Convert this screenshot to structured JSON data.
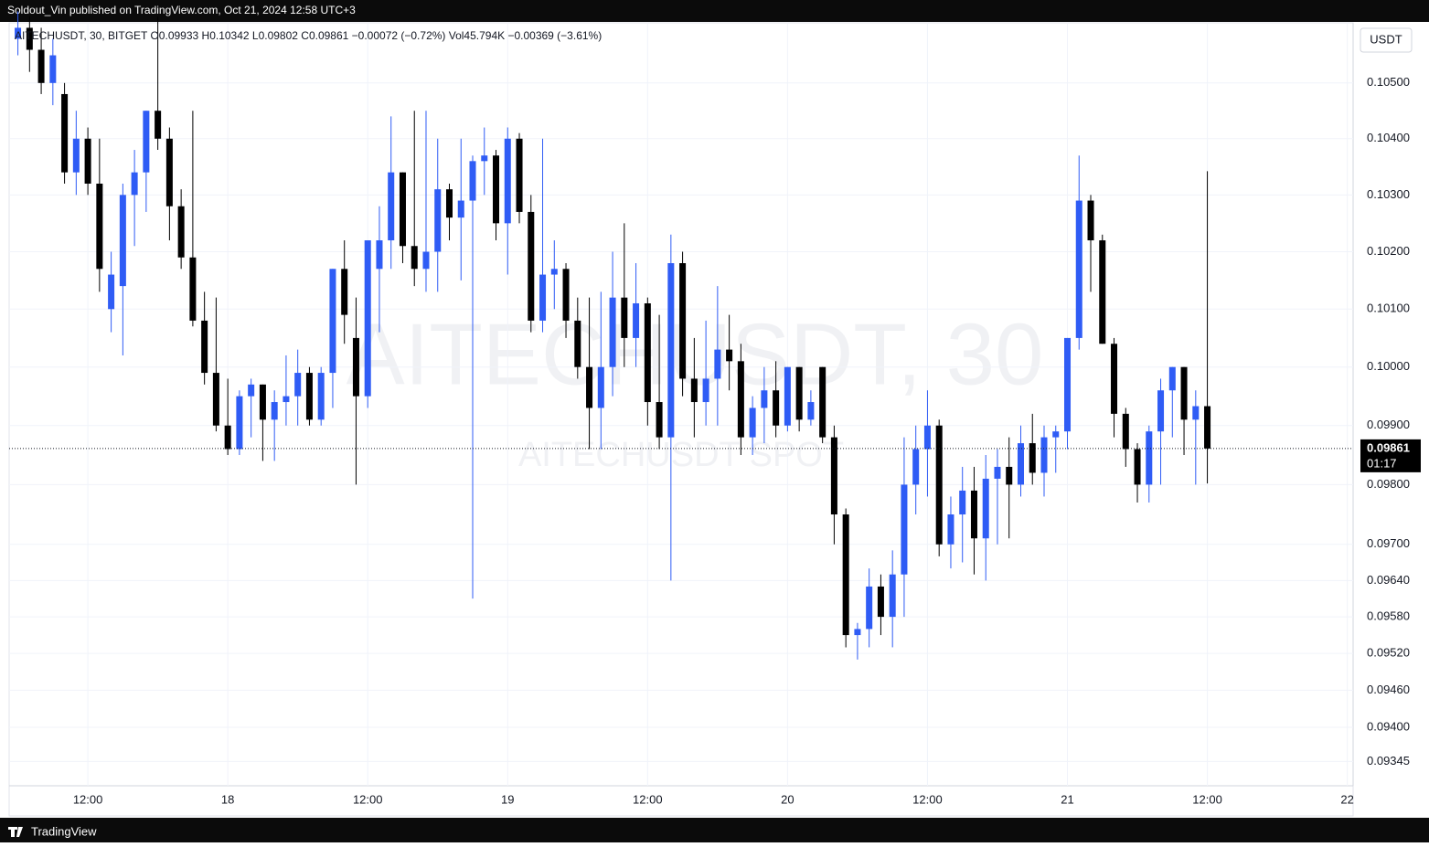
{
  "header": {
    "publisher": "Soldout_Vin published on TradingView.com, Oct 21, 2024 12:58 UTC+3"
  },
  "footer": {
    "brand": "TradingView"
  },
  "chart_data": {
    "type": "candlestick",
    "legend_text": "AITECHUSDT, 30, BITGET  O0.09933  H0.10342  L0.09802  C0.09861  −0.00072 (−0.72%)  Vol45.794K  −0.00369 (−3.61%)",
    "watermark": "AITECHUSDT, 30",
    "watermark_sub": "AITECHUSDT SPOT",
    "currency": "USDT",
    "last_price_label": "0.09861",
    "countdown": "01:17",
    "up_color": "#2f5cf5",
    "down_color": "#000000",
    "log_scale": true,
    "grid": true,
    "xlim": [
      5.25,
      120.5
    ],
    "xticks": [
      {
        "value": 12,
        "label": "12:00"
      },
      {
        "value": 24,
        "label": "18"
      },
      {
        "value": 36,
        "label": "12:00"
      },
      {
        "value": 48,
        "label": "19"
      },
      {
        "value": 60,
        "label": "12:00"
      },
      {
        "value": 72,
        "label": "20"
      },
      {
        "value": 84,
        "label": "12:00"
      },
      {
        "value": 96,
        "label": "21"
      },
      {
        "value": 108,
        "label": "12:00"
      },
      {
        "value": 120,
        "label": "22"
      }
    ],
    "ylim": [
      0.09306,
      0.10609
    ],
    "yticks": [
      {
        "value": 0.09345,
        "label": "0.09345"
      },
      {
        "value": 0.094,
        "label": "0.09400"
      },
      {
        "value": 0.0946,
        "label": "0.09460"
      },
      {
        "value": 0.0952,
        "label": "0.09520"
      },
      {
        "value": 0.0958,
        "label": "0.09580"
      },
      {
        "value": 0.0964,
        "label": "0.09640"
      },
      {
        "value": 0.097,
        "label": "0.09700"
      },
      {
        "value": 0.098,
        "label": "0.09800"
      },
      {
        "value": 0.099,
        "label": "0.09900"
      },
      {
        "value": 0.1,
        "label": "0.10000"
      },
      {
        "value": 0.101,
        "label": "0.10100"
      },
      {
        "value": 0.102,
        "label": "0.10200"
      },
      {
        "value": 0.103,
        "label": "0.10300"
      },
      {
        "value": 0.104,
        "label": "0.10400"
      },
      {
        "value": 0.105,
        "label": "0.10500"
      }
    ],
    "x": [
      6,
      7,
      8,
      9,
      10,
      11,
      12,
      13,
      14,
      15,
      16,
      17,
      18,
      19,
      20,
      21,
      22,
      23,
      24,
      25,
      26,
      27,
      28,
      29,
      30,
      31,
      32,
      33,
      34,
      35,
      36,
      37,
      38,
      39,
      40,
      41,
      42,
      43,
      44,
      45,
      46,
      47,
      48,
      49,
      50,
      51,
      52,
      53,
      54,
      55,
      56,
      57,
      58,
      59,
      60,
      61,
      62,
      63,
      64,
      65,
      66,
      67,
      68,
      69,
      70,
      71,
      72,
      73,
      74,
      75,
      76,
      77,
      78,
      79,
      80,
      81,
      82,
      83,
      84,
      85,
      86,
      87,
      88,
      89,
      90,
      91,
      92,
      93,
      94,
      95,
      96,
      97,
      98,
      99,
      100,
      101,
      102,
      103,
      104,
      105,
      106,
      107,
      108
    ],
    "open": [
      0.1058,
      0.106,
      0.1056,
      0.105,
      0.1048,
      0.1034,
      0.104,
      0.1032,
      0.101,
      0.1014,
      0.103,
      0.1034,
      0.1045,
      0.104,
      0.1028,
      0.1019,
      0.1008,
      0.0999,
      0.099,
      0.0986,
      0.0995,
      0.0997,
      0.0991,
      0.0994,
      0.0995,
      0.0999,
      0.0991,
      0.0999,
      0.1017,
      0.1005,
      0.0995,
      0.1017,
      0.1022,
      0.1034,
      0.1021,
      0.1017,
      0.102,
      0.1031,
      0.1026,
      0.1029,
      0.1036,
      0.1037,
      0.1025,
      0.104,
      0.1027,
      0.1008,
      0.1016,
      0.1017,
      0.1008,
      0.1,
      0.0993,
      0.1,
      0.1012,
      0.1005,
      0.1011,
      0.0994,
      0.0988,
      0.1018,
      0.0998,
      0.0994,
      0.0998,
      0.1003,
      0.1001,
      0.0988,
      0.0993,
      0.0996,
      0.099,
      0.1,
      0.0991,
      0.1,
      0.0988,
      0.0975,
      0.0955,
      0.0956,
      0.0963,
      0.0958,
      0.0965,
      0.098,
      0.0986,
      0.099,
      0.097,
      0.0975,
      0.0979,
      0.0971,
      0.0981,
      0.0983,
      0.098,
      0.0987,
      0.0982,
      0.0988,
      0.0989,
      0.1005,
      0.1029,
      0.1022,
      0.1004,
      0.0992,
      0.0986,
      0.098,
      0.0989,
      0.0996,
      0.1,
      0.0991,
      0.09933
    ],
    "high": [
      0.1063,
      0.1062,
      0.106,
      0.1058,
      0.105,
      0.1045,
      0.1042,
      0.104,
      0.102,
      0.1032,
      0.1038,
      0.1045,
      0.1062,
      0.1042,
      0.1031,
      0.1045,
      0.1013,
      0.1012,
      0.0998,
      0.0996,
      0.0998,
      0.0997,
      0.0996,
      0.1002,
      0.1003,
      0.1,
      0.1,
      0.1017,
      0.1022,
      0.1012,
      0.1022,
      0.1028,
      0.1044,
      0.1034,
      0.1045,
      0.1045,
      0.104,
      0.1032,
      0.104,
      0.1037,
      0.1042,
      0.1038,
      0.1042,
      0.1041,
      0.103,
      0.104,
      0.1022,
      0.1018,
      0.1012,
      0.1012,
      0.1013,
      0.102,
      0.1025,
      0.1018,
      0.1012,
      0.1009,
      0.1023,
      0.102,
      0.1005,
      0.1008,
      0.1014,
      0.1009,
      0.1004,
      0.0995,
      0.1,
      0.1001,
      0.1,
      0.1,
      0.0996,
      0.1,
      0.099,
      0.0976,
      0.0957,
      0.0966,
      0.0965,
      0.0969,
      0.0988,
      0.099,
      0.0996,
      0.0991,
      0.0978,
      0.0983,
      0.0983,
      0.0985,
      0.0986,
      0.0988,
      0.099,
      0.0992,
      0.099,
      0.099,
      0.1005,
      0.1037,
      0.103,
      0.1023,
      0.1005,
      0.0993,
      0.0987,
      0.099,
      0.0998,
      0.1,
      0.1,
      0.0996,
      0.10342
    ],
    "low": [
      0.1055,
      0.1052,
      0.1048,
      0.1046,
      0.1032,
      0.103,
      0.103,
      0.1013,
      0.1006,
      0.1002,
      0.1021,
      0.1027,
      0.1038,
      0.1022,
      0.1017,
      0.1007,
      0.0997,
      0.0989,
      0.0985,
      0.0985,
      0.0988,
      0.0984,
      0.0984,
      0.099,
      0.099,
      0.099,
      0.099,
      0.0993,
      0.1004,
      0.098,
      0.0993,
      0.1006,
      0.1017,
      0.1018,
      0.1014,
      0.1013,
      0.1013,
      0.1022,
      0.1015,
      0.0961,
      0.103,
      0.1022,
      0.1016,
      0.1025,
      0.1006,
      0.1006,
      0.101,
      0.1005,
      0.0998,
      0.0986,
      0.0986,
      0.0995,
      0.1,
      0.1,
      0.099,
      0.0986,
      0.0964,
      0.0995,
      0.0988,
      0.099,
      0.099,
      0.0996,
      0.0985,
      0.0985,
      0.0987,
      0.0988,
      0.0989,
      0.0989,
      0.099,
      0.0987,
      0.097,
      0.0953,
      0.0951,
      0.0953,
      0.0955,
      0.0953,
      0.0958,
      0.0975,
      0.0978,
      0.0968,
      0.0966,
      0.0967,
      0.0965,
      0.0964,
      0.097,
      0.0971,
      0.0978,
      0.098,
      0.0978,
      0.0982,
      0.0986,
      0.1003,
      0.1013,
      0.1004,
      0.0988,
      0.0983,
      0.0977,
      0.0977,
      0.098,
      0.0988,
      0.0985,
      0.098,
      0.09802
    ],
    "close": [
      0.106,
      0.1056,
      0.105,
      0.1055,
      0.1034,
      0.104,
      0.1032,
      0.1017,
      0.1016,
      0.103,
      0.1034,
      0.1045,
      0.104,
      0.1028,
      0.1019,
      0.1008,
      0.0999,
      0.099,
      0.0986,
      0.0995,
      0.0997,
      0.0991,
      0.0994,
      0.0995,
      0.0999,
      0.0991,
      0.0999,
      0.1017,
      0.1009,
      0.0995,
      0.1022,
      0.1022,
      0.1034,
      0.1021,
      0.1017,
      0.102,
      0.1031,
      0.1026,
      0.1029,
      0.1036,
      0.1037,
      0.1025,
      0.104,
      0.1027,
      0.1008,
      0.1016,
      0.1017,
      0.1008,
      0.1,
      0.0993,
      0.1,
      0.1012,
      0.1005,
      0.1011,
      0.0994,
      0.0988,
      0.1018,
      0.0998,
      0.0994,
      0.0998,
      0.1003,
      0.1001,
      0.0988,
      0.0993,
      0.0996,
      0.099,
      0.1,
      0.0991,
      0.0994,
      0.0988,
      0.0975,
      0.0955,
      0.0956,
      0.0963,
      0.0958,
      0.0965,
      0.098,
      0.0986,
      0.099,
      0.097,
      0.0975,
      0.0979,
      0.0971,
      0.0981,
      0.0983,
      0.098,
      0.0987,
      0.0982,
      0.0988,
      0.0989,
      0.1005,
      0.1029,
      0.1022,
      0.1004,
      0.0992,
      0.0986,
      0.098,
      0.0989,
      0.0996,
      0.1,
      0.0991,
      0.09933,
      0.09861
    ]
  }
}
